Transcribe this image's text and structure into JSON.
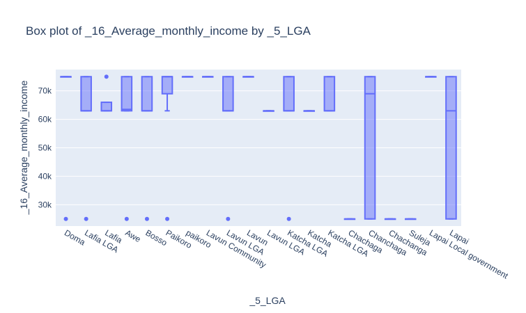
{
  "chart_data": {
    "type": "box",
    "title": "Box plot of _16_Average_monthly_income by _5_LGA",
    "xlabel": "_5_LGA",
    "ylabel": "_16_Average_monthly_income",
    "ylim": [
      22500,
      77500
    ],
    "yticks": [
      30000,
      40000,
      50000,
      60000,
      70000
    ],
    "ytick_labels": [
      "30k",
      "40k",
      "50k",
      "60k",
      "70k"
    ],
    "grid": true,
    "legend": "none",
    "colors": {
      "box_line": "#636efa",
      "box_fill": "rgba(99,110,250,0.5)",
      "plot_bg": "#e5ecf6",
      "grid": "#ffffff",
      "text": "#2a3f5f"
    },
    "categories": [
      "Doma",
      "Lafia LGA",
      "Lafia",
      "Awe",
      "Bosso",
      "Paikoro",
      "paikoro",
      "Lavun Community",
      "Lavun LGA",
      "Lavun",
      "Lavun LGA ",
      "Katcha LGA",
      "Katcha",
      "Katcha LGA ",
      "Chachaga",
      "Chanchaga",
      "Chachanga",
      "Suleja",
      "Lapai Local government",
      "Lapai"
    ],
    "boxes": [
      {
        "lowerfence": 75000,
        "q1": 75000,
        "median": 75000,
        "q3": 75000,
        "upperfence": 75000,
        "outliers": [
          25000
        ]
      },
      {
        "lowerfence": 63000,
        "q1": 63000,
        "median": 63000,
        "q3": 75000,
        "upperfence": 75000,
        "outliers": [
          25000
        ]
      },
      {
        "lowerfence": 63000,
        "q1": 63000,
        "median": 63000,
        "q3": 66000,
        "upperfence": 66000,
        "outliers": [
          75000
        ]
      },
      {
        "lowerfence": 63000,
        "q1": 63000,
        "median": 63500,
        "q3": 75000,
        "upperfence": 75000,
        "outliers": [
          25000
        ]
      },
      {
        "lowerfence": 63000,
        "q1": 63000,
        "median": 63000,
        "q3": 75000,
        "upperfence": 75000,
        "outliers": [
          25000
        ]
      },
      {
        "lowerfence": 63000,
        "q1": 69000,
        "median": 75000,
        "q3": 75000,
        "upperfence": 75000,
        "outliers": [
          25000
        ]
      },
      {
        "lowerfence": 75000,
        "q1": 75000,
        "median": 75000,
        "q3": 75000,
        "upperfence": 75000,
        "outliers": []
      },
      {
        "lowerfence": 75000,
        "q1": 75000,
        "median": 75000,
        "q3": 75000,
        "upperfence": 75000,
        "outliers": []
      },
      {
        "lowerfence": 63000,
        "q1": 63000,
        "median": 63000,
        "q3": 75000,
        "upperfence": 75000,
        "outliers": [
          25000
        ]
      },
      {
        "lowerfence": 75000,
        "q1": 75000,
        "median": 75000,
        "q3": 75000,
        "upperfence": 75000,
        "outliers": []
      },
      {
        "lowerfence": 63000,
        "q1": 63000,
        "median": 63000,
        "q3": 63000,
        "upperfence": 63000,
        "outliers": []
      },
      {
        "lowerfence": 63000,
        "q1": 63000,
        "median": 63000,
        "q3": 75000,
        "upperfence": 75000,
        "outliers": [
          25000
        ]
      },
      {
        "lowerfence": 63000,
        "q1": 63000,
        "median": 63000,
        "q3": 63000,
        "upperfence": 63000,
        "outliers": []
      },
      {
        "lowerfence": 63000,
        "q1": 63000,
        "median": 63000,
        "q3": 75000,
        "upperfence": 75000,
        "outliers": []
      },
      {
        "lowerfence": 25000,
        "q1": 25000,
        "median": 25000,
        "q3": 25000,
        "upperfence": 25000,
        "outliers": []
      },
      {
        "lowerfence": 25000,
        "q1": 25000,
        "median": 69000,
        "q3": 75000,
        "upperfence": 75000,
        "outliers": []
      },
      {
        "lowerfence": 25000,
        "q1": 25000,
        "median": 25000,
        "q3": 25000,
        "upperfence": 25000,
        "outliers": []
      },
      {
        "lowerfence": 25000,
        "q1": 25000,
        "median": 25000,
        "q3": 25000,
        "upperfence": 25000,
        "outliers": []
      },
      {
        "lowerfence": 75000,
        "q1": 75000,
        "median": 75000,
        "q3": 75000,
        "upperfence": 75000,
        "outliers": []
      },
      {
        "lowerfence": 25000,
        "q1": 25000,
        "median": 63000,
        "q3": 75000,
        "upperfence": 75000,
        "outliers": []
      }
    ]
  }
}
